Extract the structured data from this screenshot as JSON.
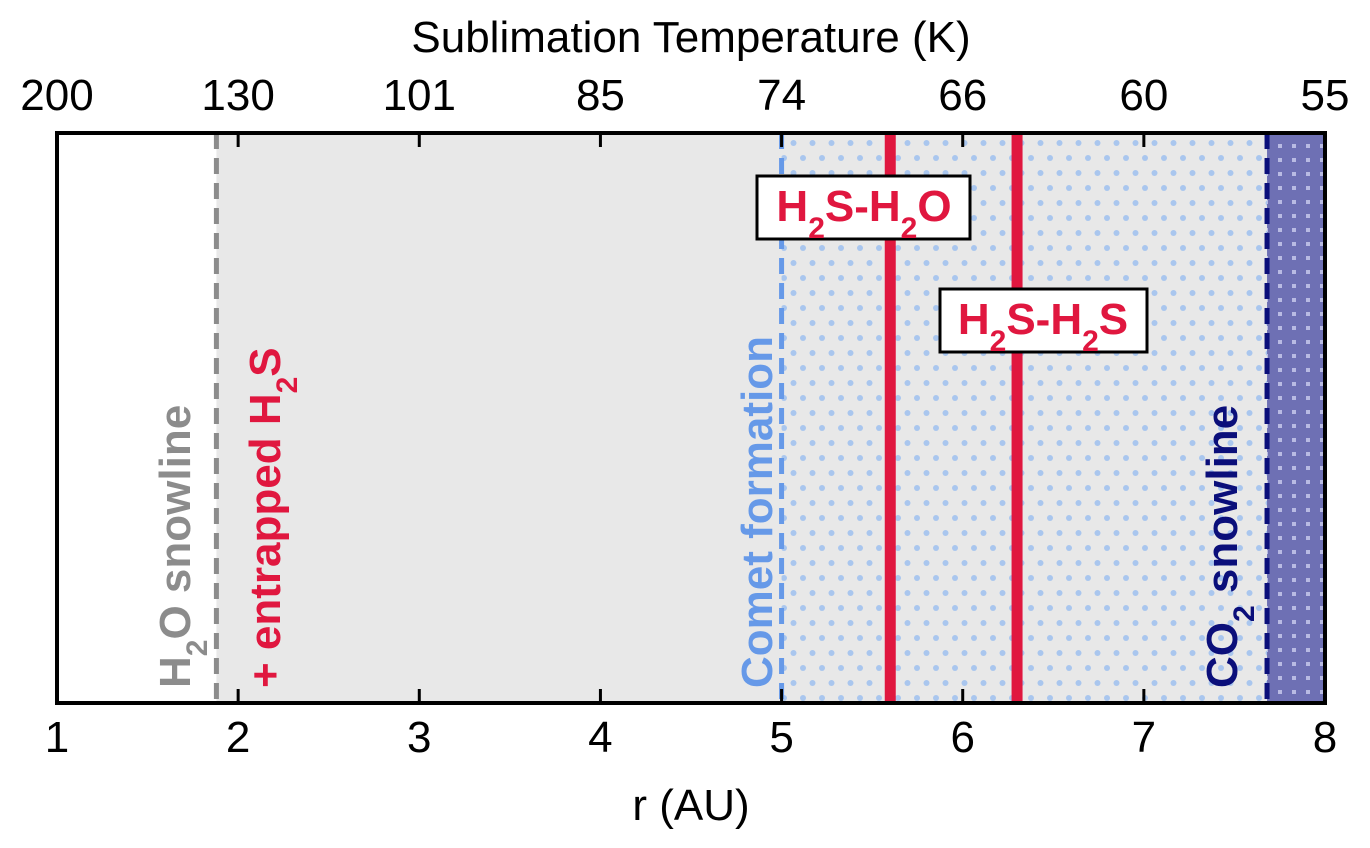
{
  "chart_data": {
    "type": "line",
    "title": "",
    "xlabel": "r (AU)",
    "top_xlabel": "Sublimation Temperature (K)",
    "xlim": [
      1,
      8
    ],
    "x_ticks": [
      "1",
      "2",
      "3",
      "4",
      "5",
      "6",
      "7",
      "8"
    ],
    "top_ticks": [
      {
        "r": 1,
        "label": "200"
      },
      {
        "r": 2,
        "label": "130"
      },
      {
        "r": 3,
        "label": "101"
      },
      {
        "r": 4,
        "label": "85"
      },
      {
        "r": 5,
        "label": "74"
      },
      {
        "r": 6,
        "label": "66"
      },
      {
        "r": 7,
        "label": "60"
      },
      {
        "r": 8,
        "label": "55"
      }
    ],
    "regions": [
      {
        "name": "ice-region",
        "x_start": 1.88,
        "x_end": 8,
        "color": "#e8e8e8"
      },
      {
        "name": "comet-formation-region",
        "x_start": 5.0,
        "x_end": 7.68,
        "color": "#a9c6ee",
        "pattern": "dots"
      },
      {
        "name": "co2-ice-region",
        "x_start": 7.68,
        "x_end": 8,
        "color": "#6e70b4",
        "pattern": "squares"
      }
    ],
    "vertical_lines": [
      {
        "name": "h2o-snowline",
        "x": 1.88,
        "style": "dashed",
        "color": "#8c8c8c"
      },
      {
        "name": "comet-formation",
        "x": 5.0,
        "style": "dashed",
        "color": "#6699e8"
      },
      {
        "name": "h2s-h2o",
        "x": 5.6,
        "style": "solid",
        "color": "#e0173f"
      },
      {
        "name": "h2s-h2s",
        "x": 6.3,
        "style": "solid",
        "color": "#e0173f"
      },
      {
        "name": "co2-snowline",
        "x": 7.68,
        "style": "dashed",
        "color": "#0b0f7a"
      }
    ],
    "annotations": {
      "h2o_snowline": {
        "pre": "H",
        "sub": "2",
        "post": "O snowline",
        "color": "#8c8c8c"
      },
      "entrapped": {
        "pre": "+ entrapped H",
        "sub": "2",
        "post": "S",
        "color": "#e0173f"
      },
      "comet_formation": {
        "pre": "Comet formation",
        "sub": "",
        "post": "",
        "color": "#6699e8"
      },
      "co2_snowline": {
        "pre": "CO",
        "sub": "2",
        "post": " snowline",
        "color": "#0b0f7a"
      },
      "h2s_h2o_box": {
        "p1": "H",
        "s1": "2",
        "p2": "S-H",
        "s2": "2",
        "p3": "O",
        "color": "#e0173f"
      },
      "h2s_h2s_box": {
        "p1": "H",
        "s1": "2",
        "p2": "S-H",
        "s2": "2",
        "p3": "S",
        "color": "#e0173f"
      }
    }
  }
}
